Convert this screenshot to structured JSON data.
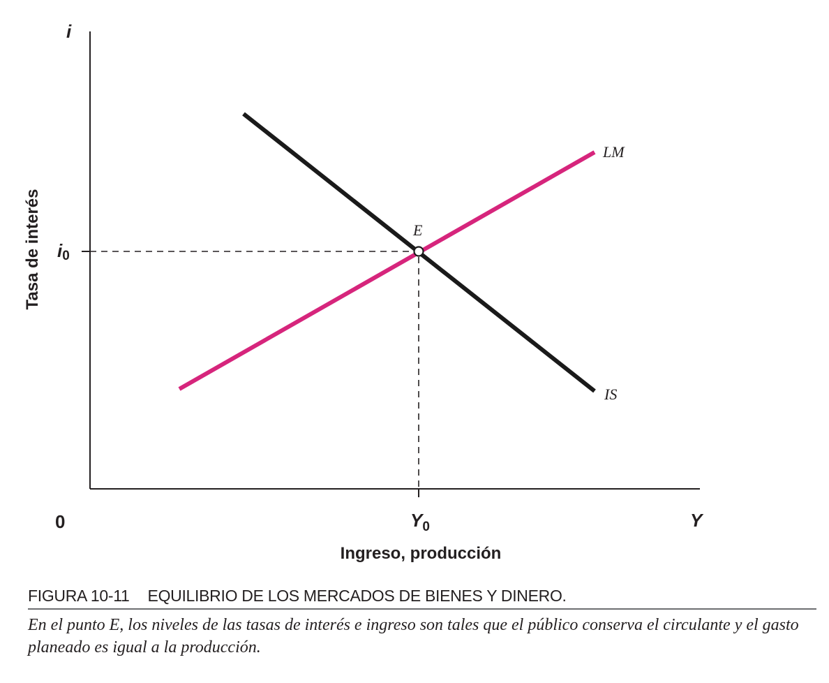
{
  "diagram": {
    "y_axis_symbol": "i",
    "x_axis_symbol": "Y",
    "origin_label": "0",
    "y_axis_title": "Tasa de interés",
    "x_axis_title": "Ingreso, producción",
    "i0_label": "i",
    "i0_subscript": "0",
    "y0_label": "Y",
    "y0_subscript": "0",
    "equilibrium_label": "E",
    "lm_label": "LM",
    "is_label": "IS",
    "colors": {
      "lm": "#d6257c",
      "is": "#1a1a1a",
      "axis": "#231f20"
    }
  },
  "caption": {
    "figure_number": "FIGURA 10-11",
    "title": "EQUILIBRIO DE LOS MERCADOS DE BIENES Y DINERO.",
    "text": "En el punto E, los niveles de las tasas de interés e ingreso son tales que el público conserva el circulante y el gasto planeado es igual a la producción."
  }
}
